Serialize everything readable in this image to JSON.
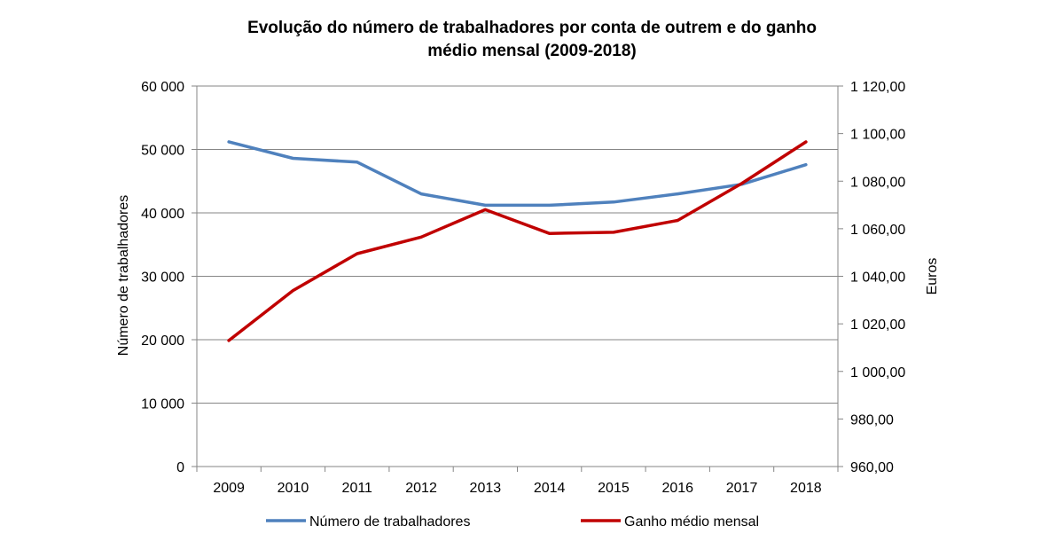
{
  "chart_data": {
    "type": "line",
    "title_line1": "Evolução do número de trabalhadores por conta de outrem e do ganho",
    "title_line2": "médio mensal (2009-2018)",
    "xlabel": "",
    "ylabel_left": "Número de trabalhadores",
    "ylabel_right": "Euros",
    "categories": [
      "2009",
      "2010",
      "2011",
      "2012",
      "2013",
      "2014",
      "2015",
      "2016",
      "2017",
      "2018"
    ],
    "y_left": {
      "min": 0,
      "max": 60000,
      "step": 10000,
      "ticks": [
        "0",
        "10 000",
        "20 000",
        "30 000",
        "40 000",
        "50 000",
        "60 000"
      ]
    },
    "y_right": {
      "min": 960,
      "max": 1120,
      "step": 20,
      "ticks": [
        "960,00",
        "980,00",
        "1 000,00",
        "1 020,00",
        "1 040,00",
        "1 060,00",
        "1 080,00",
        "1 100,00",
        "1 120,00"
      ]
    },
    "grid": true,
    "legend_position": "bottom",
    "series": [
      {
        "name": "Número de trabalhadores",
        "axis": "left",
        "color": "#4F81BD",
        "values": [
          51200,
          48600,
          48000,
          43000,
          41200,
          41200,
          41700,
          43000,
          44500,
          47600
        ]
      },
      {
        "name": "Ganho médio mensal",
        "axis": "right",
        "color": "#C00000",
        "values": [
          1013,
          1034,
          1049.5,
          1056.5,
          1068,
          1058,
          1058.5,
          1063.5,
          1079,
          1096.5
        ]
      }
    ]
  }
}
